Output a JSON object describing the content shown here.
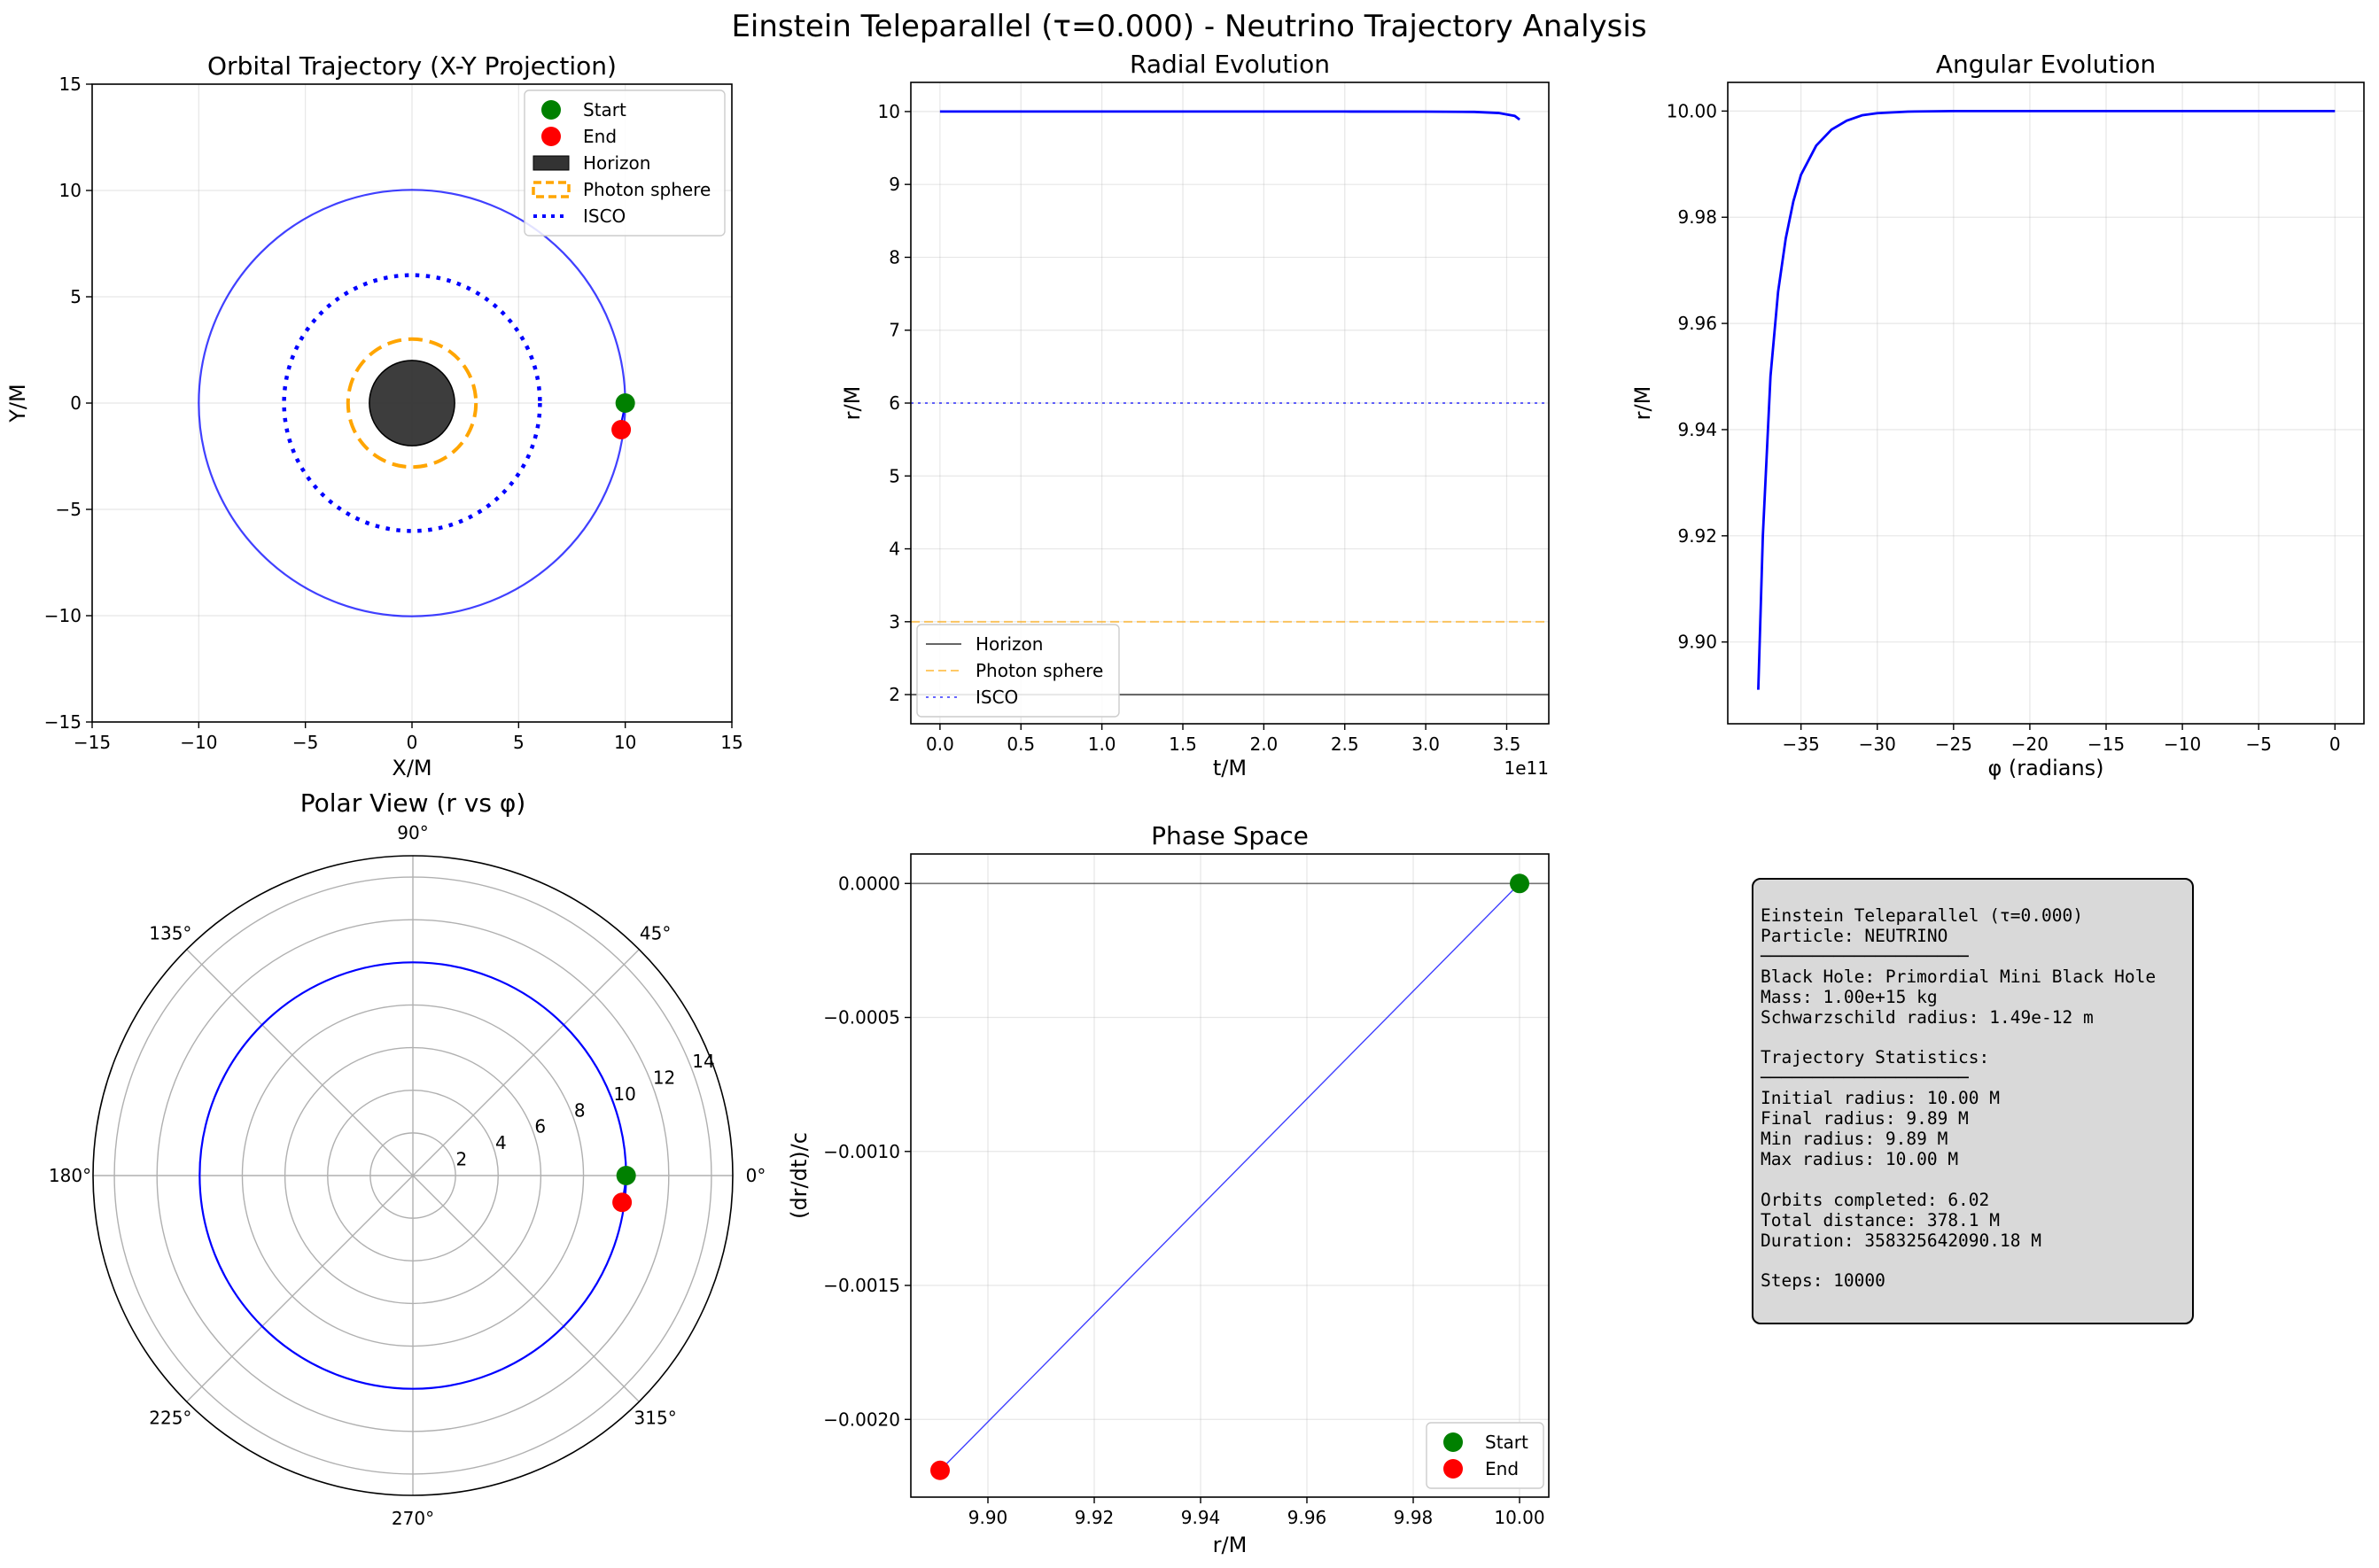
{
  "figure": {
    "suptitle": "Einstein Teleparallel (τ=0.000) - Neutrino Trajectory Analysis"
  },
  "colors": {
    "trajectory": "#0000ff",
    "start": "#008000",
    "end": "#ff0000",
    "horizon": "#333333",
    "photon": "#ffa500",
    "isco": "#0000ff"
  },
  "chart_data": [
    {
      "id": "orbital",
      "type": "line",
      "title": "Orbital Trajectory (X-Y Projection)",
      "xlabel": "X/M",
      "ylabel": "Y/M",
      "xlim": [
        -15,
        15
      ],
      "ylim": [
        -15,
        15
      ],
      "xticks": [
        -15,
        -10,
        -5,
        0,
        5,
        10,
        15
      ],
      "yticks": [
        -15,
        -10,
        -5,
        0,
        5,
        10,
        15
      ],
      "grid": true,
      "legend": {
        "position": "top-right",
        "entries": [
          "Start",
          "End",
          "Horizon",
          "Photon sphere",
          "ISCO"
        ]
      },
      "trajectory_radius": 10.0,
      "horizon_radius": 2.0,
      "photon_sphere_radius": 3.0,
      "isco_radius": 6.0,
      "start": {
        "x": 10.0,
        "y": 0.0
      },
      "end": {
        "x": 9.81,
        "y": -1.25
      }
    },
    {
      "id": "radial",
      "type": "line",
      "title": "Radial Evolution",
      "xlabel": "t/M",
      "ylabel": "r/M",
      "x_offset_label": "1e11",
      "xlim": [
        -0.18,
        3.76
      ],
      "ylim": [
        1.6,
        10.4
      ],
      "xticks": [
        0.0,
        0.5,
        1.0,
        1.5,
        2.0,
        2.5,
        3.0,
        3.5
      ],
      "xtick_labels": [
        "0.0",
        "0.5",
        "1.0",
        "1.5",
        "2.0",
        "2.5",
        "3.0",
        "3.5"
      ],
      "yticks": [
        2,
        3,
        4,
        5,
        6,
        7,
        8,
        9,
        10
      ],
      "grid": true,
      "legend": {
        "position": "lower-left",
        "entries": [
          "Horizon",
          "Photon sphere",
          "ISCO"
        ]
      },
      "series": [
        {
          "name": "r(t)",
          "x": [
            0,
            0.5,
            1.0,
            1.5,
            2.0,
            2.5,
            3.0,
            3.3,
            3.45,
            3.55,
            3.58
          ],
          "y": [
            10.0,
            10.0,
            10.0,
            10.0,
            10.0,
            10.0,
            9.999,
            9.995,
            9.98,
            9.94,
            9.89
          ]
        }
      ],
      "reference_lines": {
        "horizon": 2.0,
        "photon_sphere": 3.0,
        "isco": 6.0
      }
    },
    {
      "id": "angular",
      "type": "line",
      "title": "Angular Evolution",
      "xlabel": "φ (radians)",
      "ylabel": "r/M",
      "xlim": [
        -39.8,
        1.9
      ],
      "ylim": [
        9.8846,
        10.0054
      ],
      "xticks": [
        -35,
        -30,
        -25,
        -20,
        -15,
        -10,
        -5,
        0
      ],
      "xtick_labels": [
        "−35",
        "−30",
        "−25",
        "−20",
        "−15",
        "−10",
        "−5",
        "0"
      ],
      "yticks": [
        9.9,
        9.92,
        9.94,
        9.96,
        9.98,
        10.0
      ],
      "ytick_labels": [
        "9.90",
        "9.92",
        "9.94",
        "9.96",
        "9.98",
        "10.00"
      ],
      "grid": true,
      "series": [
        {
          "name": "r(φ)",
          "x": [
            -37.8,
            -37.5,
            -37.0,
            -36.5,
            -36.0,
            -35.5,
            -35.0,
            -34.0,
            -33.0,
            -32.0,
            -31.0,
            -30.0,
            -28.0,
            -25.0,
            -15.0,
            0.0
          ],
          "y": [
            9.891,
            9.92,
            9.95,
            9.966,
            9.976,
            9.983,
            9.988,
            9.9935,
            9.9965,
            9.9982,
            9.9992,
            9.9996,
            9.9999,
            10.0,
            10.0,
            10.0
          ]
        }
      ]
    },
    {
      "id": "polar",
      "type": "line",
      "title": "Polar View (r vs φ)",
      "rmax": 15,
      "rticks": [
        2,
        4,
        6,
        8,
        10,
        12,
        14
      ],
      "rtick_labels": [
        "2",
        "4",
        "6",
        "8",
        "10",
        "12",
        "14"
      ],
      "angle_labels": [
        "0°",
        "45°",
        "90°",
        "135°",
        "180°",
        "225°",
        "270°",
        "315°"
      ],
      "grid": true,
      "trajectory_radius": 10.0,
      "start": {
        "r": 10.0,
        "phi_deg": 0.0
      },
      "end": {
        "r": 9.89,
        "phi_deg": -7.3
      }
    },
    {
      "id": "phase",
      "type": "scatter",
      "title": "Phase Space",
      "xlabel": "r/M",
      "ylabel": "(dr/dt)/c",
      "xlim": [
        9.8855,
        10.0055
      ],
      "ylim": [
        -0.00229,
        0.00011
      ],
      "xticks": [
        9.9,
        9.92,
        9.94,
        9.96,
        9.98,
        10.0
      ],
      "xtick_labels": [
        "9.90",
        "9.92",
        "9.94",
        "9.96",
        "9.98",
        "10.00"
      ],
      "yticks": [
        0.0,
        -0.0005,
        -0.001,
        -0.0015,
        -0.002
      ],
      "ytick_labels": [
        "0.0000",
        "−0.0005",
        "−0.0010",
        "−0.0015",
        "−0.0020"
      ],
      "grid": true,
      "legend": {
        "position": "lower-right",
        "entries": [
          "Start",
          "End"
        ]
      },
      "series": [
        {
          "name": "trajectory",
          "x": [
            10.0,
            9.891
          ],
          "y": [
            0.0,
            -0.00219
          ]
        }
      ],
      "zero_line": 0.0,
      "start": {
        "x": 10.0,
        "y": 0.0
      },
      "end": {
        "x": 9.891,
        "y": -0.00219
      }
    }
  ],
  "stats": {
    "lines": [
      "Einstein Teleparallel (τ=0.000)",
      "Particle: NEUTRINO",
      "────────────────────",
      "Black Hole: Primordial Mini Black Hole",
      "Mass: 1.00e+15 kg",
      "Schwarzschild radius: 1.49e-12 m",
      "",
      "Trajectory Statistics:",
      "────────────────────",
      "Initial radius: 10.00 M",
      "Final radius: 9.89 M",
      "Min radius: 9.89 M",
      "Max radius: 10.00 M",
      "",
      "Orbits completed: 6.02",
      "Total distance: 378.1 M",
      "Duration: 358325642090.18 M",
      "",
      "Steps: 10000"
    ]
  }
}
